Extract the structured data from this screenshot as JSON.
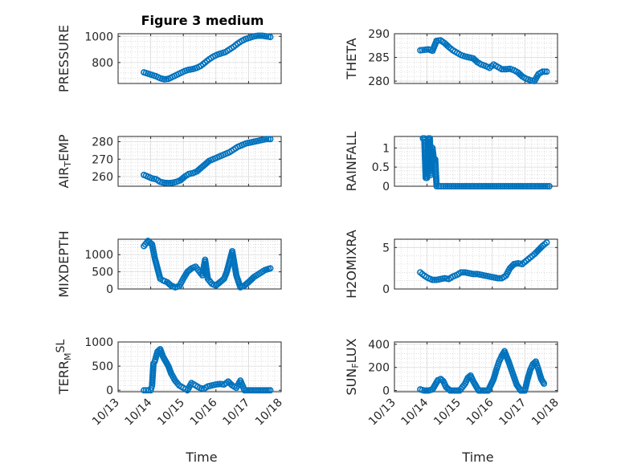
{
  "figure": {
    "title": "Figure 3 medium",
    "xlabel_left": "Time",
    "xlabel_right": "Time"
  },
  "style": {
    "marker_color": "#0072BD",
    "grid_major_color": "#d9d9d9",
    "grid_minor_color": "#c8c8c8",
    "axis_color": "#262626"
  },
  "chart_data": [
    {
      "type": "scatter",
      "ylabel": {
        "parts": [
          {
            "t": "PRESSURE",
            "s": "n"
          }
        ]
      },
      "ylim": [
        640,
        1020
      ],
      "yticks": [
        800,
        1000
      ],
      "ytick_labels": [
        "800",
        "1000"
      ],
      "xlim": [
        "2021-10-13",
        "2021-10-18"
      ],
      "xticks": [
        "10/13",
        "10/14",
        "10/15",
        "10/16",
        "10/17",
        "10/18"
      ],
      "show_xtick_labels": false,
      "grid": true,
      "x": [
        "10/13 19:00",
        "10/13 22:00",
        "10/14 01:00",
        "10/14 04:00",
        "10/14 07:00",
        "10/14 10:00",
        "10/14 13:00",
        "10/14 16:00",
        "10/14 19:00",
        "10/14 22:00",
        "10/15 01:00",
        "10/15 04:00",
        "10/15 07:00",
        "10/15 10:00",
        "10/15 13:00",
        "10/15 16:00",
        "10/15 19:00",
        "10/15 22:00",
        "10/16 01:00",
        "10/16 04:00",
        "10/16 07:00",
        "10/16 10:00",
        "10/16 13:00",
        "10/16 16:00",
        "10/16 19:00",
        "10/16 22:00",
        "10/17 01:00",
        "10/17 04:00",
        "10/17 07:00",
        "10/17 10:00",
        "10/17 13:00",
        "10/17 16:00"
      ],
      "y": [
        725,
        715,
        705,
        695,
        680,
        672,
        675,
        690,
        705,
        720,
        735,
        745,
        750,
        760,
        775,
        800,
        825,
        845,
        860,
        870,
        880,
        900,
        920,
        945,
        965,
        980,
        990,
        1000,
        1005,
        1005,
        1000,
        995
      ]
    },
    {
      "type": "scatter",
      "ylabel": {
        "parts": [
          {
            "t": "THETA",
            "s": "n"
          }
        ]
      },
      "ylim": [
        279.5,
        290
      ],
      "yticks": [
        280,
        285,
        290
      ],
      "ytick_labels": [
        "280",
        "285",
        "290"
      ],
      "xlim": [
        "2021-10-13",
        "2021-10-18"
      ],
      "xticks": [
        "10/13",
        "10/14",
        "10/15",
        "10/16",
        "10/17",
        "10/18"
      ],
      "show_xtick_labels": false,
      "grid": true,
      "x": [
        "10/13 19:00",
        "10/13 22:00",
        "10/14 01:00",
        "10/14 04:00",
        "10/14 07:00",
        "10/14 10:00",
        "10/14 13:00",
        "10/14 16:00",
        "10/14 19:00",
        "10/14 22:00",
        "10/15 01:00",
        "10/15 04:00",
        "10/15 07:00",
        "10/15 10:00",
        "10/15 13:00",
        "10/15 16:00",
        "10/15 19:00",
        "10/15 22:00",
        "10/16 01:00",
        "10/16 04:00",
        "10/16 07:00",
        "10/16 10:00",
        "10/16 13:00",
        "10/16 16:00",
        "10/16 19:00",
        "10/16 22:00",
        "10/17 01:00",
        "10/17 04:00",
        "10/17 07:00",
        "10/17 10:00",
        "10/17 13:00",
        "10/17 16:00"
      ],
      "y": [
        286.5,
        286.6,
        286.7,
        286.4,
        288.5,
        288.6,
        288.0,
        287.2,
        286.5,
        286.0,
        285.5,
        285.2,
        285.0,
        284.8,
        284.0,
        283.5,
        283.2,
        282.8,
        283.5,
        283.0,
        282.5,
        282.5,
        282.6,
        282.3,
        281.8,
        281.0,
        280.5,
        280.2,
        280.0,
        281.5,
        282.0,
        282.0
      ]
    },
    {
      "type": "scatter",
      "ylabel": {
        "parts": [
          {
            "t": "AIR",
            "s": "n"
          },
          {
            "t": "T",
            "s": "sub"
          },
          {
            "t": "EMP",
            "s": "n"
          }
        ]
      },
      "ylim": [
        254.5,
        283
      ],
      "yticks": [
        260,
        270,
        280
      ],
      "ytick_labels": [
        "260",
        "270",
        "280"
      ],
      "xlim": [
        "2021-10-13",
        "2021-10-18"
      ],
      "xticks": [
        "10/13",
        "10/14",
        "10/15",
        "10/16",
        "10/17",
        "10/18"
      ],
      "show_xtick_labels": false,
      "grid": true,
      "x": [
        "10/13 19:00",
        "10/13 22:00",
        "10/14 01:00",
        "10/14 04:00",
        "10/14 07:00",
        "10/14 10:00",
        "10/14 13:00",
        "10/14 16:00",
        "10/14 19:00",
        "10/14 22:00",
        "10/15 01:00",
        "10/15 04:00",
        "10/15 07:00",
        "10/15 10:00",
        "10/15 13:00",
        "10/15 16:00",
        "10/15 19:00",
        "10/15 22:00",
        "10/16 01:00",
        "10/16 04:00",
        "10/16 07:00",
        "10/16 10:00",
        "10/16 13:00",
        "10/16 16:00",
        "10/16 19:00",
        "10/16 22:00",
        "10/17 01:00",
        "10/17 04:00",
        "10/17 07:00",
        "10/17 10:00",
        "10/17 13:00",
        "10/17 16:00"
      ],
      "y": [
        261,
        260,
        259,
        258.5,
        257,
        256.5,
        256.3,
        256.5,
        257,
        258,
        260,
        261.5,
        262,
        263,
        265,
        267,
        269,
        270,
        271,
        272,
        273,
        274,
        275.5,
        277,
        278,
        279,
        279.5,
        280,
        280.5,
        281,
        281.5,
        281.5
      ]
    },
    {
      "type": "scatter",
      "ylabel": {
        "parts": [
          {
            "t": "RAINFALL",
            "s": "n"
          }
        ]
      },
      "ylim": [
        0,
        1.3
      ],
      "yticks": [
        0,
        0.5,
        1
      ],
      "ytick_labels": [
        "0",
        "0.5",
        "1"
      ],
      "xlim": [
        "2021-10-13",
        "2021-10-18"
      ],
      "xticks": [
        "10/13",
        "10/14",
        "10/15",
        "10/16",
        "10/17",
        "10/18"
      ],
      "show_xtick_labels": false,
      "grid": true,
      "x": [
        "10/13 21:00",
        "10/13 22:00",
        "10/13 23:00",
        "10/14 00:00",
        "10/14 01:00",
        "10/14 02:00",
        "10/14 03:00",
        "10/14 04:00",
        "10/14 05:00",
        "10/14 06:00",
        "10/14 07:00",
        "10/14 12:00",
        "10/14 18:00",
        "10/15 00:00",
        "10/15 06:00",
        "10/15 12:00",
        "10/15 18:00",
        "10/16 00:00",
        "10/16 06:00",
        "10/16 12:00",
        "10/16 18:00",
        "10/17 00:00",
        "10/17 06:00",
        "10/17 12:00",
        "10/17 18:00"
      ],
      "y": [
        1.25,
        1.25,
        0.22,
        0.22,
        1.25,
        1.25,
        0.3,
        1.0,
        0.7,
        0.7,
        0,
        0,
        0,
        0,
        0,
        0,
        0,
        0,
        0,
        0,
        0,
        0,
        0,
        0,
        0
      ]
    },
    {
      "type": "scatter",
      "ylabel": {
        "parts": [
          {
            "t": "MIXDEPTH",
            "s": "n"
          }
        ]
      },
      "ylim": [
        0,
        1450
      ],
      "yticks": [
        0,
        500,
        1000
      ],
      "ytick_labels": [
        "0",
        "500",
        "1000"
      ],
      "xlim": [
        "2021-10-13",
        "2021-10-18"
      ],
      "xticks": [
        "10/13",
        "10/14",
        "10/15",
        "10/16",
        "10/17",
        "10/18"
      ],
      "show_xtick_labels": false,
      "grid": true,
      "x": [
        "10/13 19:00",
        "10/13 22:00",
        "10/14 01:00",
        "10/14 03:00",
        "10/14 05:00",
        "10/14 07:00",
        "10/14 09:00",
        "10/14 12:00",
        "10/14 15:00",
        "10/14 18:00",
        "10/14 21:00",
        "10/15 00:00",
        "10/15 03:00",
        "10/15 06:00",
        "10/15 09:00",
        "10/15 12:00",
        "10/15 14:00",
        "10/15 16:00",
        "10/15 18:00",
        "10/15 21:00",
        "10/16 00:00",
        "10/16 03:00",
        "10/16 06:00",
        "10/16 08:00",
        "10/16 10:00",
        "10/16 12:00",
        "10/16 15:00",
        "10/16 18:00",
        "10/16 21:00",
        "10/17 00:00",
        "10/17 04:00",
        "10/17 08:00",
        "10/17 12:00",
        "10/17 16:00"
      ],
      "y": [
        1250,
        1400,
        1300,
        900,
        600,
        300,
        250,
        200,
        100,
        50,
        80,
        300,
        500,
        600,
        650,
        500,
        400,
        850,
        300,
        150,
        100,
        200,
        300,
        500,
        800,
        1100,
        400,
        50,
        100,
        200,
        350,
        450,
        550,
        600
      ]
    },
    {
      "type": "scatter",
      "ylabel": {
        "parts": [
          {
            "t": "H2OMIXRA",
            "s": "n"
          }
        ]
      },
      "ylim": [
        0,
        6
      ],
      "yticks": [
        0,
        5
      ],
      "ytick_labels": [
        "0",
        "5"
      ],
      "xlim": [
        "2021-10-13",
        "2021-10-18"
      ],
      "xticks": [
        "10/13",
        "10/14",
        "10/15",
        "10/16",
        "10/17",
        "10/18"
      ],
      "show_xtick_labels": false,
      "grid": true,
      "x": [
        "10/13 19:00",
        "10/13 22:00",
        "10/14 01:00",
        "10/14 04:00",
        "10/14 07:00",
        "10/14 10:00",
        "10/14 13:00",
        "10/14 16:00",
        "10/14 19:00",
        "10/14 22:00",
        "10/15 01:00",
        "10/15 04:00",
        "10/15 07:00",
        "10/15 10:00",
        "10/15 13:00",
        "10/15 16:00",
        "10/15 19:00",
        "10/15 22:00",
        "10/16 01:00",
        "10/16 04:00",
        "10/16 07:00",
        "10/16 10:00",
        "10/16 13:00",
        "10/16 16:00",
        "10/16 19:00",
        "10/16 22:00",
        "10/17 01:00",
        "10/17 04:00",
        "10/17 07:00",
        "10/17 10:00",
        "10/17 13:00",
        "10/17 16:00"
      ],
      "y": [
        2.0,
        1.6,
        1.3,
        1.1,
        1.1,
        1.2,
        1.3,
        1.2,
        1.5,
        1.7,
        2.0,
        2.0,
        1.9,
        1.8,
        1.8,
        1.7,
        1.6,
        1.5,
        1.4,
        1.3,
        1.3,
        1.6,
        2.5,
        3.0,
        3.1,
        3.0,
        3.4,
        3.8,
        4.2,
        4.7,
        5.2,
        5.6
      ]
    },
    {
      "type": "scatter",
      "ylabel": {
        "parts": [
          {
            "t": "TERR",
            "s": "n"
          },
          {
            "t": "M",
            "s": "sub"
          },
          {
            "t": "SL",
            "s": "sup"
          }
        ]
      },
      "ylim": [
        -30,
        1000
      ],
      "yticks": [
        0,
        500,
        1000
      ],
      "ytick_labels": [
        "0",
        "500",
        "1000"
      ],
      "xlim": [
        "2021-10-13",
        "2021-10-18"
      ],
      "xticks": [
        "10/13",
        "10/14",
        "10/15",
        "10/16",
        "10/17",
        "10/18"
      ],
      "show_xtick_labels": true,
      "grid": true,
      "x": [
        "10/13 19:00",
        "10/13 22:00",
        "10/14 00:00",
        "10/14 01:00",
        "10/14 02:00",
        "10/14 03:00",
        "10/14 05:00",
        "10/14 07:00",
        "10/14 09:00",
        "10/14 11:00",
        "10/14 13:00",
        "10/14 15:00",
        "10/14 18:00",
        "10/14 21:00",
        "10/15 00:00",
        "10/15 03:00",
        "10/15 06:00",
        "10/15 09:00",
        "10/15 12:00",
        "10/15 15:00",
        "10/15 18:00",
        "10/15 21:00",
        "10/16 00:00",
        "10/16 03:00",
        "10/16 06:00",
        "10/16 09:00",
        "10/16 12:00",
        "10/16 15:00",
        "10/16 18:00",
        "10/16 21:00",
        "10/17 00:00",
        "10/17 04:00",
        "10/17 08:00",
        "10/17 12:00",
        "10/17 16:00"
      ],
      "y": [
        0,
        0,
        0,
        100,
        550,
        600,
        800,
        850,
        700,
        600,
        500,
        350,
        200,
        100,
        50,
        0,
        150,
        100,
        50,
        30,
        80,
        100,
        120,
        130,
        120,
        180,
        100,
        50,
        200,
        0,
        0,
        0,
        0,
        0,
        0
      ]
    },
    {
      "type": "scatter",
      "ylabel": {
        "parts": [
          {
            "t": "SUN",
            "s": "n"
          },
          {
            "t": "F",
            "s": "sub"
          },
          {
            "t": "LUX",
            "s": "n"
          }
        ]
      },
      "ylim": [
        -10,
        420
      ],
      "yticks": [
        0,
        200,
        400
      ],
      "ytick_labels": [
        "0",
        "200",
        "400"
      ],
      "xlim": [
        "2021-10-13",
        "2021-10-18"
      ],
      "xticks": [
        "10/13",
        "10/14",
        "10/15",
        "10/16",
        "10/17",
        "10/18"
      ],
      "show_xtick_labels": true,
      "grid": true,
      "x": [
        "10/13 19:00",
        "10/13 22:00",
        "10/14 01:00",
        "10/14 04:00",
        "10/14 06:00",
        "10/14 08:00",
        "10/14 10:00",
        "10/14 12:00",
        "10/14 14:00",
        "10/14 17:00",
        "10/14 20:00",
        "10/15 00:00",
        "10/15 04:00",
        "10/15 06:00",
        "10/15 08:00",
        "10/15 10:00",
        "10/15 12:00",
        "10/15 14:00",
        "10/15 17:00",
        "10/15 21:00",
        "10/16 01:00",
        "10/16 03:00",
        "10/16 05:00",
        "10/16 07:00",
        "10/16 09:00",
        "10/16 12:00",
        "10/16 15:00",
        "10/16 18:00",
        "10/16 21:00",
        "10/17 00:00",
        "10/17 02:00",
        "10/17 04:00",
        "10/17 06:00",
        "10/17 08:00",
        "10/17 10:00",
        "10/17 12:00",
        "10/17 14:00"
      ],
      "y": [
        10,
        0,
        0,
        10,
        50,
        90,
        100,
        80,
        30,
        0,
        0,
        0,
        60,
        110,
        130,
        80,
        40,
        0,
        0,
        0,
        100,
        180,
        250,
        300,
        340,
        250,
        150,
        50,
        0,
        0,
        100,
        180,
        230,
        250,
        180,
        100,
        60
      ]
    }
  ]
}
